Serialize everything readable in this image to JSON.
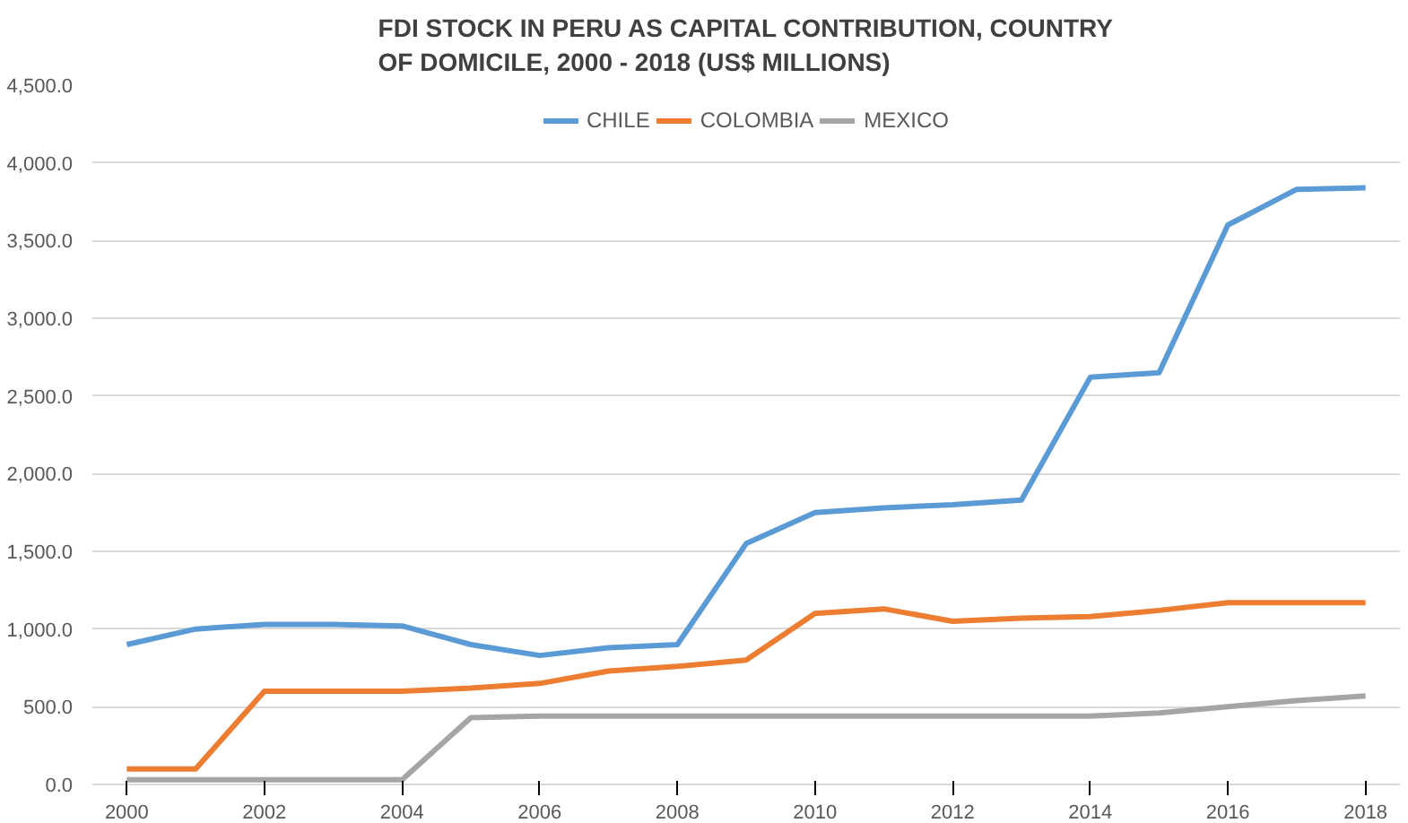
{
  "chart_data": {
    "type": "line",
    "title": "FDI STOCK IN PERU AS CAPITAL CONTRIBUTION, COUNTRY OF DOMICILE, 2000 - 2018 (US$ MILLIONS)",
    "x": [
      2000,
      2001,
      2002,
      2003,
      2004,
      2005,
      2006,
      2007,
      2008,
      2009,
      2010,
      2011,
      2012,
      2013,
      2014,
      2015,
      2016,
      2017,
      2018
    ],
    "series": [
      {
        "name": "CHILE",
        "color": "#5b9bd5",
        "values": [
          900,
          1000,
          1030,
          1030,
          1020,
          900,
          830,
          880,
          900,
          1550,
          1750,
          1780,
          1800,
          1830,
          2620,
          2650,
          3600,
          3830,
          3840
        ]
      },
      {
        "name": "COLOMBIA",
        "color": "#ed7d31",
        "values": [
          100,
          100,
          600,
          600,
          600,
          620,
          650,
          730,
          760,
          800,
          1100,
          1130,
          1050,
          1070,
          1080,
          1120,
          1170,
          1170,
          1170
        ]
      },
      {
        "name": "MEXICO",
        "color": "#a5a5a5",
        "values": [
          30,
          30,
          30,
          30,
          30,
          430,
          440,
          440,
          440,
          440,
          440,
          440,
          440,
          440,
          440,
          460,
          500,
          540,
          570
        ]
      }
    ],
    "xlim": [
      1999.5,
      2018.5
    ],
    "xticks": [
      2000,
      2002,
      2004,
      2006,
      2008,
      2010,
      2012,
      2014,
      2016,
      2018
    ],
    "ylim": [
      0,
      4500
    ],
    "yticks": [
      {
        "value": 0,
        "label": "0.0"
      },
      {
        "value": 500,
        "label": "500.0"
      },
      {
        "value": 1000,
        "label": "1,000.0"
      },
      {
        "value": 1500,
        "label": "1,500.0"
      },
      {
        "value": 2000,
        "label": "2,000.0"
      },
      {
        "value": 2500,
        "label": "2,500.0"
      },
      {
        "value": 3000,
        "label": "3,000.0"
      },
      {
        "value": 3500,
        "label": "3,500.0"
      },
      {
        "value": 4000,
        "label": "4,000.0"
      },
      {
        "value": 4500,
        "label": "4,500.0"
      }
    ],
    "grid": "y",
    "legend": "top",
    "marker": "none",
    "line_style": "solid"
  }
}
